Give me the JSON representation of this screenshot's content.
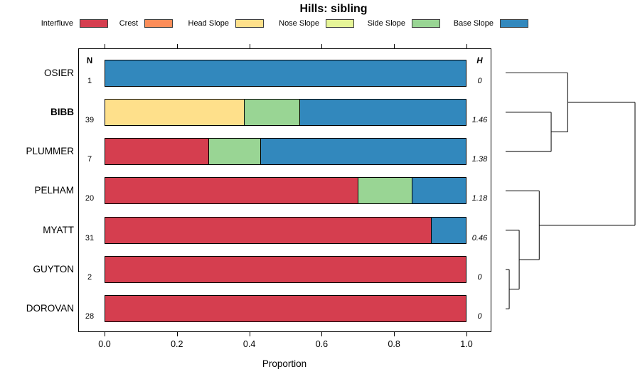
{
  "title": "Hills: sibling",
  "legend": {
    "items": [
      {
        "label": "Interfluve",
        "color": "#d53e4f"
      },
      {
        "label": "Crest",
        "color": "#fc8d59"
      },
      {
        "label": "Head Slope",
        "color": "#fee08b"
      },
      {
        "label": "Nose Slope",
        "color": "#e6f598"
      },
      {
        "label": "Side Slope",
        "color": "#99d594"
      },
      {
        "label": "Base Slope",
        "color": "#3288bd"
      }
    ]
  },
  "columns": {
    "n_header": "N",
    "h_header": "H"
  },
  "axis": {
    "label": "Proportion",
    "ticks": [
      {
        "label": "0.0",
        "value": 0.0
      },
      {
        "label": "0.2",
        "value": 0.2
      },
      {
        "label": "0.4",
        "value": 0.4
      },
      {
        "label": "0.6",
        "value": 0.6
      },
      {
        "label": "0.8",
        "value": 0.8
      },
      {
        "label": "1.0",
        "value": 1.0
      }
    ]
  },
  "chart_data": {
    "type": "bar",
    "variant": "horizontal-stacked-proportion",
    "title": "Hills: sibling",
    "xlabel": "Proportion",
    "xlim": [
      0,
      1
    ],
    "grid": false,
    "legend_position": "top",
    "categories": [
      "Interfluve",
      "Crest",
      "Head Slope",
      "Nose Slope",
      "Side Slope",
      "Base Slope"
    ],
    "category_colors": {
      "Interfluve": "#d53e4f",
      "Crest": "#fc8d59",
      "Head Slope": "#fee08b",
      "Nose Slope": "#e6f598",
      "Side Slope": "#99d594",
      "Base Slope": "#3288bd"
    },
    "rows": [
      {
        "label": "OSIER",
        "bold": false,
        "n": "1",
        "h": "0",
        "segments": [
          {
            "category": "Base Slope",
            "proportion": 1.0
          }
        ]
      },
      {
        "label": "BIBB",
        "bold": true,
        "n": "39",
        "h": "1.46",
        "segments": [
          {
            "category": "Head Slope",
            "proportion": 0.385
          },
          {
            "category": "Side Slope",
            "proportion": 0.154
          },
          {
            "category": "Base Slope",
            "proportion": 0.461
          }
        ]
      },
      {
        "label": "PLUMMER",
        "bold": false,
        "n": "7",
        "h": "1.38",
        "segments": [
          {
            "category": "Interfluve",
            "proportion": 0.286
          },
          {
            "category": "Side Slope",
            "proportion": 0.143
          },
          {
            "category": "Base Slope",
            "proportion": 0.571
          }
        ]
      },
      {
        "label": "PELHAM",
        "bold": false,
        "n": "20",
        "h": "1.18",
        "segments": [
          {
            "category": "Interfluve",
            "proportion": 0.7
          },
          {
            "category": "Side Slope",
            "proportion": 0.15
          },
          {
            "category": "Base Slope",
            "proportion": 0.15
          }
        ]
      },
      {
        "label": "MYATT",
        "bold": false,
        "n": "31",
        "h": "0.46",
        "segments": [
          {
            "category": "Interfluve",
            "proportion": 0.903
          },
          {
            "category": "Base Slope",
            "proportion": 0.097
          }
        ]
      },
      {
        "label": "GUYTON",
        "bold": false,
        "n": "2",
        "h": "0",
        "segments": [
          {
            "category": "Interfluve",
            "proportion": 1.0
          }
        ]
      },
      {
        "label": "DOROVAN",
        "bold": false,
        "n": "28",
        "h": "0",
        "segments": [
          {
            "category": "Interfluve",
            "proportion": 1.0
          }
        ]
      }
    ],
    "dendrogram": {
      "position": "right",
      "heights_normalized": true,
      "tree": {
        "height": 1.0,
        "children": [
          {
            "height": 0.48,
            "children": [
              {
                "leaf": "OSIER"
              },
              {
                "height": 0.352,
                "children": [
                  {
                    "leaf": "BIBB"
                  },
                  {
                    "leaf": "PLUMMER"
                  }
                ]
              }
            ]
          },
          {
            "height": 0.26,
            "children": [
              {
                "leaf": "PELHAM"
              },
              {
                "height": 0.105,
                "children": [
                  {
                    "leaf": "MYATT"
                  },
                  {
                    "height": 0.028,
                    "children": [
                      {
                        "leaf": "GUYTON"
                      },
                      {
                        "leaf": "DOROVAN"
                      }
                    ]
                  }
                ]
              }
            ]
          }
        ]
      }
    }
  }
}
